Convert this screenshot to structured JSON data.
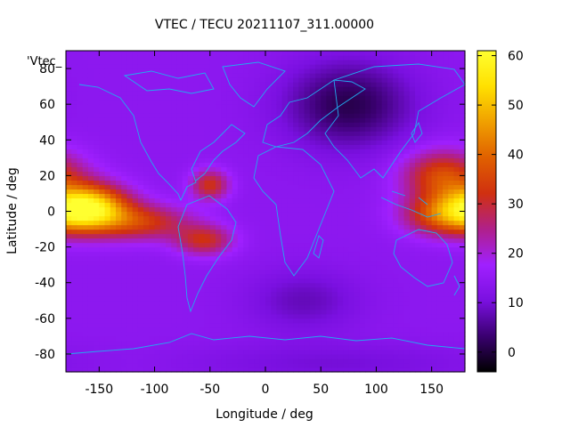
{
  "chart_data": {
    "type": "heatmap",
    "title": "VTEC / TECU 20211107_311.00000",
    "xlabel": "Longitude / deg",
    "ylabel": "Latitude / deg",
    "legend_label": "'Vtec_",
    "xlim": [
      -180,
      180
    ],
    "ylim": [
      -90,
      90
    ],
    "xticks": [
      -150,
      -100,
      -50,
      0,
      50,
      100,
      150
    ],
    "yticks": [
      -80,
      -60,
      -40,
      -20,
      0,
      20,
      40,
      60,
      80
    ],
    "zlim": [
      -4,
      61
    ],
    "colorbar_ticks": [
      0,
      10,
      20,
      30,
      40,
      50,
      60
    ],
    "colormap": [
      "#000000",
      "#3a0070",
      "#7a10e0",
      "#a020ff",
      "#b0208a",
      "#d03010",
      "#e06000",
      "#f0a000",
      "#ffe000",
      "#ffff30"
    ],
    "background_level": 14,
    "coastline_color": "#22aaee",
    "features": [
      {
        "name": "pacific-equatorial-anomaly",
        "lon": -160,
        "lat": 2,
        "sigma_lon": 25,
        "sigma_lat": 9,
        "amplitude": 44
      },
      {
        "name": "pacific-anomaly-tail",
        "lon": -110,
        "lat": -6,
        "sigma_lon": 30,
        "sigma_lat": 7,
        "amplitude": 18
      },
      {
        "name": "south-america-crest-north",
        "lon": -50,
        "lat": 15,
        "sigma_lon": 12,
        "sigma_lat": 6,
        "amplitude": 18
      },
      {
        "name": "south-america-crest-south",
        "lon": -55,
        "lat": -16,
        "sigma_lon": 18,
        "sigma_lat": 6,
        "amplitude": 17
      },
      {
        "name": "asia-pacific-anomaly-north",
        "lon": 160,
        "lat": 20,
        "sigma_lon": 25,
        "sigma_lat": 10,
        "amplitude": 22
      },
      {
        "name": "asia-pacific-anomaly-south",
        "lon": 160,
        "lat": -2,
        "sigma_lon": 25,
        "sigma_lat": 8,
        "amplitude": 22
      },
      {
        "name": "siberia-minimum",
        "lon": 75,
        "lat": 60,
        "sigma_lon": 40,
        "sigma_lat": 17,
        "amplitude": -13
      },
      {
        "name": "south-atlantic-minimum",
        "lon": 35,
        "lat": -50,
        "sigma_lon": 35,
        "sigma_lat": 12,
        "amplitude": -6
      },
      {
        "name": "antarctic-low",
        "lon": 60,
        "lat": -85,
        "sigma_lon": 90,
        "sigma_lat": 8,
        "amplitude": -4
      }
    ]
  }
}
